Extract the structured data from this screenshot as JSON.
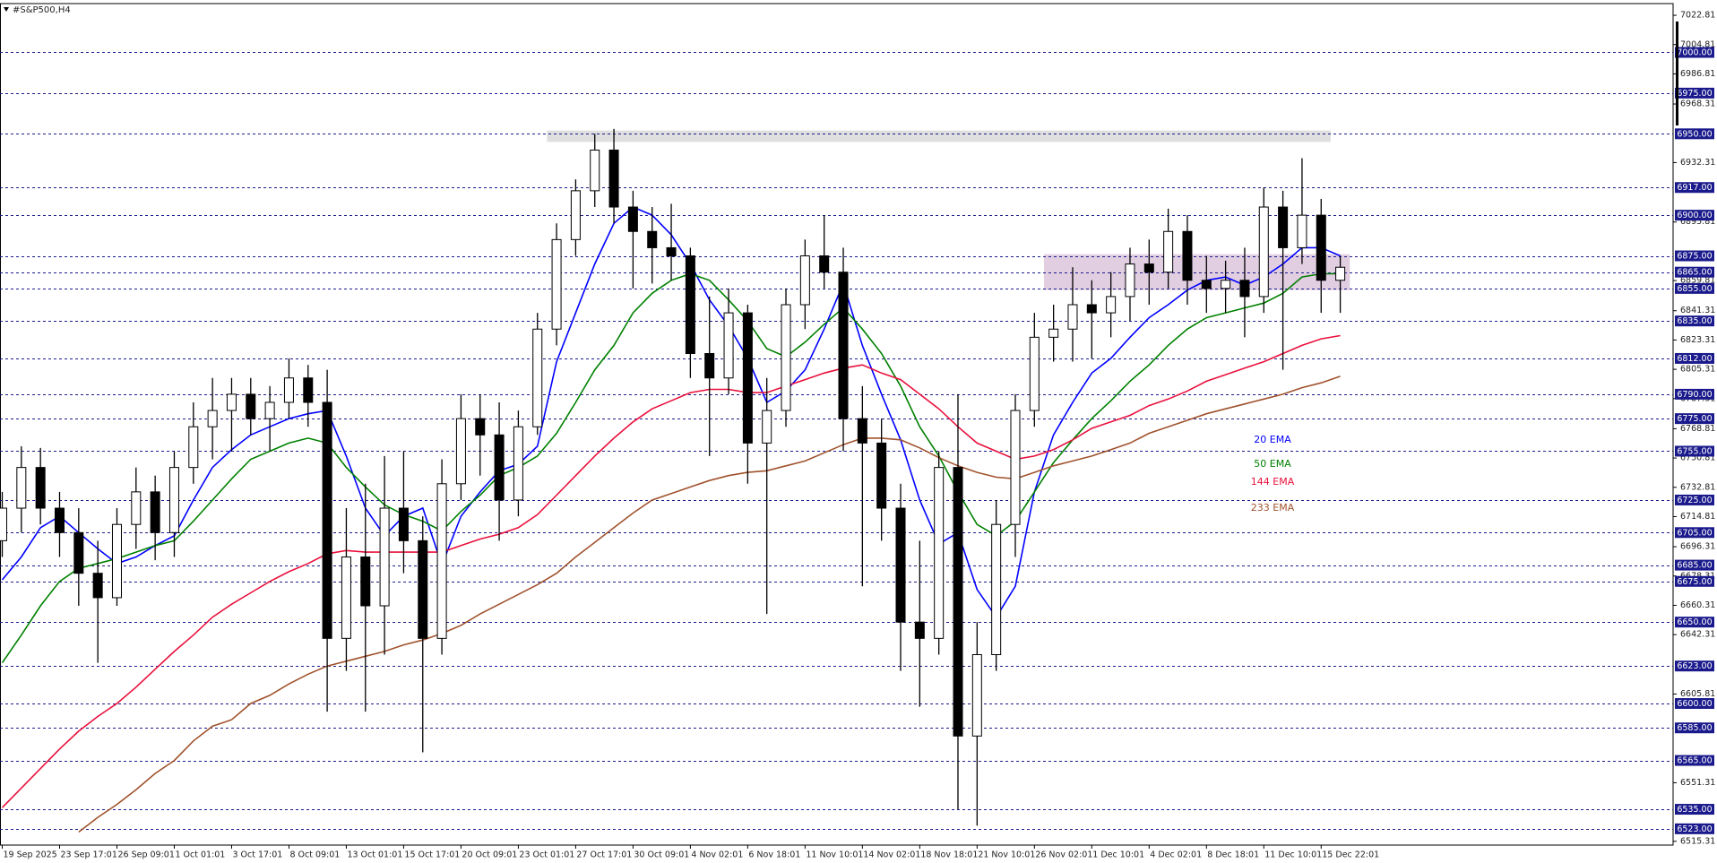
{
  "chart_data": {
    "type": "candlestick",
    "title": "#S&P500,H4",
    "categories": [
      "19 Sep 2025",
      null,
      null,
      "23 Sep 17:01",
      null,
      null,
      "26 Sep 09:01",
      null,
      null,
      "1 Oct 01:01",
      null,
      null,
      "3 Oct 17:01",
      null,
      null,
      "8 Oct 09:01",
      null,
      null,
      "13 Oct 01:01",
      null,
      null,
      "15 Oct 17:01",
      null,
      null,
      "20 Oct 09:01",
      null,
      null,
      "23 Oct 01:01",
      null,
      null,
      "27 Oct 17:01",
      null,
      null,
      "30 Oct 09:01",
      null,
      null,
      "4 Nov 02:01",
      null,
      null,
      "6 Nov 18:01",
      null,
      null,
      "11 Nov 10:01",
      null,
      null,
      "14 Nov 02:01",
      null,
      null,
      "18 Nov 18:01",
      null,
      null,
      "21 Nov 10:01",
      null,
      null,
      "26 Nov 02:01",
      null,
      null,
      "1 Dec 10:01",
      null,
      null,
      "4 Dec 02:01",
      null,
      null,
      "8 Dec 18:01",
      null,
      null,
      "11 Dec 10:01",
      null,
      null,
      "15 Dec 22:01",
      null
    ],
    "open": [
      6700,
      6720,
      6745,
      6720,
      6705,
      6680,
      6665,
      6710,
      6730,
      6705,
      6745,
      6770,
      6780,
      6790,
      6775,
      6785,
      6800,
      6785,
      6640,
      6690,
      6660,
      6720,
      6700,
      6640,
      6735,
      6775,
      6765,
      6725,
      6770,
      6830,
      6885,
      6915,
      6940,
      6905,
      6890,
      6880,
      6875,
      6815,
      6800,
      6840,
      6760,
      6780,
      6845,
      6875,
      6865,
      6775,
      6760,
      6720,
      6650,
      6640,
      6745,
      6580,
      6630,
      6710,
      6780,
      6825,
      6830,
      6845,
      6840,
      6850,
      6870,
      6865,
      6890,
      6860,
      6855,
      6860,
      6850,
      6905,
      6880,
      6900,
      6860
    ],
    "high": [
      6730,
      6758,
      6757,
      6730,
      6720,
      6700,
      6720,
      6745,
      6740,
      6755,
      6785,
      6800,
      6800,
      6800,
      6795,
      6812,
      6808,
      6805,
      6720,
      6735,
      6752,
      6755,
      6715,
      6750,
      6790,
      6790,
      6785,
      6780,
      6840,
      6895,
      6922,
      6950,
      6953,
      6915,
      6905,
      6907,
      6880,
      6850,
      6855,
      6845,
      6800,
      6855,
      6885,
      6900,
      6880,
      6795,
      6775,
      6735,
      6700,
      6755,
      6790,
      6650,
      6725,
      6790,
      6840,
      6845,
      6868,
      6860,
      6865,
      6880,
      6885,
      6904,
      6900,
      6875,
      6872,
      6880,
      6917,
      6915,
      6935,
      6910,
      6875
    ],
    "low": [
      6690,
      6705,
      6710,
      6690,
      6660,
      6625,
      6660,
      6695,
      6688,
      6690,
      6735,
      6750,
      6755,
      6765,
      6755,
      6775,
      6770,
      6595,
      6620,
      6595,
      6630,
      6680,
      6570,
      6630,
      6725,
      6740,
      6700,
      6715,
      6765,
      6820,
      6875,
      6905,
      6895,
      6855,
      6858,
      6860,
      6800,
      6752,
      6790,
      6735,
      6655,
      6770,
      6830,
      6855,
      6755,
      6672,
      6700,
      6620,
      6598,
      6630,
      6535,
      6525,
      6620,
      6690,
      6770,
      6810,
      6810,
      6812,
      6825,
      6835,
      6845,
      6855,
      6845,
      6840,
      6840,
      6825,
      6840,
      6805,
      6870,
      6840,
      6840
    ],
    "close": [
      6720,
      6745,
      6720,
      6705,
      6680,
      6665,
      6710,
      6730,
      6705,
      6745,
      6770,
      6780,
      6790,
      6775,
      6785,
      6800,
      6785,
      6640,
      6690,
      6660,
      6720,
      6700,
      6640,
      6735,
      6775,
      6765,
      6725,
      6770,
      6830,
      6885,
      6915,
      6940,
      6905,
      6890,
      6880,
      6875,
      6815,
      6800,
      6840,
      6760,
      6780,
      6845,
      6875,
      6865,
      6775,
      6760,
      6720,
      6650,
      6640,
      6745,
      6580,
      6630,
      6710,
      6780,
      6825,
      6830,
      6845,
      6840,
      6850,
      6870,
      6865,
      6890,
      6860,
      6855,
      6860,
      6850,
      6905,
      6880,
      6900,
      6860,
      6868
    ],
    "up_color": "#ffffff",
    "down_color": "#000000",
    "series": [
      {
        "name": "20 EMA",
        "color": "#0000ff",
        "values": [
          6676,
          6690,
          6708,
          6715,
          6705,
          6695,
          6686,
          6690,
          6697,
          6703,
          6725,
          6745,
          6756,
          6765,
          6770,
          6775,
          6778,
          6780,
          6752,
          6720,
          6703,
          6715,
          6720,
          6685,
          6715,
          6730,
          6743,
          6747,
          6758,
          6810,
          6840,
          6870,
          6895,
          6905,
          6900,
          6888,
          6870,
          6848,
          6832,
          6812,
          6785,
          6792,
          6805,
          6830,
          6858,
          6820,
          6790,
          6762,
          6725,
          6698,
          6705,
          6670,
          6653,
          6672,
          6730,
          6765,
          6785,
          6803,
          6812,
          6825,
          6837,
          6845,
          6854,
          6860,
          6862,
          6857,
          6862,
          6870,
          6880,
          6880,
          6875
        ]
      },
      {
        "name": "50 EMA",
        "color": "#008000",
        "values": [
          6625,
          6642,
          6660,
          6675,
          6683,
          6686,
          6689,
          6693,
          6697,
          6700,
          6712,
          6725,
          6738,
          6750,
          6755,
          6760,
          6763,
          6760,
          6745,
          6733,
          6722,
          6716,
          6712,
          6706,
          6718,
          6728,
          6740,
          6745,
          6752,
          6766,
          6785,
          6805,
          6820,
          6840,
          6852,
          6860,
          6864,
          6860,
          6848,
          6835,
          6818,
          6813,
          6822,
          6833,
          6843,
          6830,
          6815,
          6795,
          6770,
          6752,
          6730,
          6710,
          6703,
          6712,
          6730,
          6748,
          6762,
          6775,
          6786,
          6798,
          6808,
          6820,
          6830,
          6837,
          6840,
          6843,
          6846,
          6852,
          6862,
          6864,
          6864
        ]
      },
      {
        "name": "144 EMA",
        "color": "#e8103c",
        "values": [
          6536,
          6548,
          6560,
          6572,
          6583,
          6592,
          6600,
          6610,
          6621,
          6632,
          6642,
          6653,
          6661,
          6668,
          6675,
          6681,
          6686,
          6692,
          6694,
          6693,
          6693,
          6693,
          6693,
          6693,
          6697,
          6701,
          6704,
          6708,
          6716,
          6728,
          6740,
          6752,
          6763,
          6773,
          6781,
          6786,
          6791,
          6793,
          6793,
          6791,
          6791,
          6795,
          6799,
          6803,
          6806,
          6808,
          6803,
          6799,
          6790,
          6781,
          6770,
          6760,
          6755,
          6750,
          6752,
          6756,
          6762,
          6769,
          6773,
          6777,
          6783,
          6787,
          6792,
          6798,
          6802,
          6806,
          6810,
          6815,
          6820,
          6824,
          6826
        ]
      },
      {
        "name": "233 EMA",
        "color": "#a0522d",
        "values": [
          null,
          null,
          null,
          null,
          6521,
          6530,
          6538,
          6547,
          6557,
          6565,
          6577,
          6586,
          6590,
          6600,
          6605,
          6612,
          6618,
          6623,
          6626,
          6629,
          6632,
          6636,
          6639,
          6643,
          6648,
          6655,
          6661,
          6667,
          6673,
          6680,
          6690,
          6699,
          6708,
          6717,
          6725,
          6729,
          6733,
          6737,
          6740,
          6742,
          6743,
          6746,
          6749,
          6754,
          6759,
          6763,
          6763,
          6762,
          6757,
          6751,
          6746,
          6742,
          6739,
          6738,
          6742,
          6746,
          6749,
          6752,
          6756,
          6760,
          6766,
          6770,
          6774,
          6778,
          6781,
          6784,
          6787,
          6790,
          6794,
          6797,
          6801
        ]
      }
    ],
    "ylim": [
      6513,
      7030
    ],
    "yticks": [
      7022.81,
      7004.81,
      6986.81,
      6968.31,
      6932.31,
      6895.81,
      6859.81,
      6841.31,
      6823.31,
      6805.31,
      6787.31,
      6768.81,
      6750.81,
      6732.81,
      6714.81,
      6696.31,
      6678.31,
      6660.31,
      6642.31,
      6605.81,
      6551.31,
      6515.31
    ],
    "grid": false,
    "levels": [
      {
        "value": 7000,
        "label": "7000.00"
      },
      {
        "value": 6975,
        "label": "6975.00"
      },
      {
        "value": 6950,
        "label": "6950.00"
      },
      {
        "value": 6917,
        "label": "6917.00"
      },
      {
        "value": 6900,
        "label": "6900.00"
      },
      {
        "value": 6875,
        "label": "6875.00"
      },
      {
        "value": 6865,
        "label": "6865.00"
      },
      {
        "value": 6855,
        "label": "6855.00"
      },
      {
        "value": 6835,
        "label": "6835.00"
      },
      {
        "value": 6812,
        "label": "6812.00"
      },
      {
        "value": 6790,
        "label": "6790.00"
      },
      {
        "value": 6775,
        "label": "6775.00"
      },
      {
        "value": 6755,
        "label": "6755.00"
      },
      {
        "value": 6725,
        "label": "6725.00"
      },
      {
        "value": 6705,
        "label": "6705.00"
      },
      {
        "value": 6685,
        "label": "6685.00"
      },
      {
        "value": 6675,
        "label": "6675.00"
      },
      {
        "value": 6650,
        "label": "6650.00"
      },
      {
        "value": 6623,
        "label": "6623.00"
      },
      {
        "value": 6600,
        "label": "6600.00"
      },
      {
        "value": 6585,
        "label": "6585.00"
      },
      {
        "value": 6565,
        "label": "6565.00"
      },
      {
        "value": 6535,
        "label": "6535.00"
      },
      {
        "value": 6523,
        "label": "6523.00"
      }
    ],
    "level_color": "#1a1a8c",
    "zones": [
      {
        "from": 6945,
        "to": 6952,
        "start": 29,
        "end": 69,
        "color": "#d9d9d9"
      },
      {
        "from": 6854,
        "to": 6876,
        "start": 55,
        "end": 70,
        "color": "#dcc6dc"
      }
    ]
  }
}
